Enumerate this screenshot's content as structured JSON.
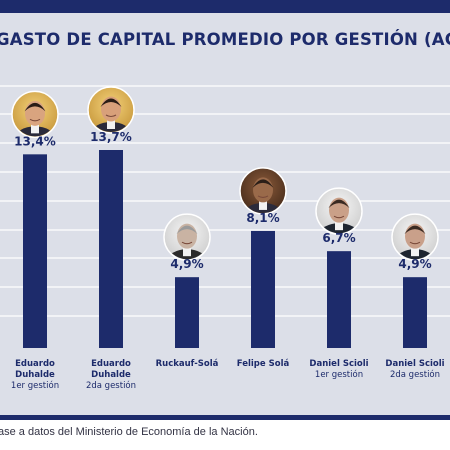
{
  "chart_data": {
    "type": "bar",
    "title": "GASTO DE CAPITAL PROMEDIO POR GESTIÓN (AC+OE)",
    "categories": [
      {
        "name": "Eduardo Duhalde",
        "lines": [
          "Eduardo",
          "Duhalde"
        ],
        "sub": "1er gestión"
      },
      {
        "name": "Eduardo Duhalde",
        "lines": [
          "Eduardo",
          "Duhalde"
        ],
        "sub": "2da gestión"
      },
      {
        "name": "Ruckauf-Solá",
        "lines": [
          "Ruckauf-Solá"
        ],
        "sub": ""
      },
      {
        "name": "Felipe Solá",
        "lines": [
          "Felipe Solá"
        ],
        "sub": ""
      },
      {
        "name": "Daniel Scioli",
        "lines": [
          "Daniel Scioli"
        ],
        "sub": "1er gestión"
      },
      {
        "name": "Daniel Scioli",
        "lines": [
          "Daniel Scioli"
        ],
        "sub": "2da gestión"
      }
    ],
    "values": [
      13.4,
      13.7,
      4.9,
      8.1,
      6.7,
      4.9
    ],
    "value_labels": [
      "13,4%",
      "13,7%",
      "4,9%",
      "8,1%",
      "6,7%",
      "4,9%"
    ],
    "ylim": [
      0,
      14.5
    ],
    "grid": true,
    "colors": {
      "bar": "#1d2b6b",
      "panel": "#dcdfe8",
      "grid": "#ffffff"
    }
  },
  "footer": {
    "source": "ase a datos del Ministerio de Economía de la Nación."
  }
}
